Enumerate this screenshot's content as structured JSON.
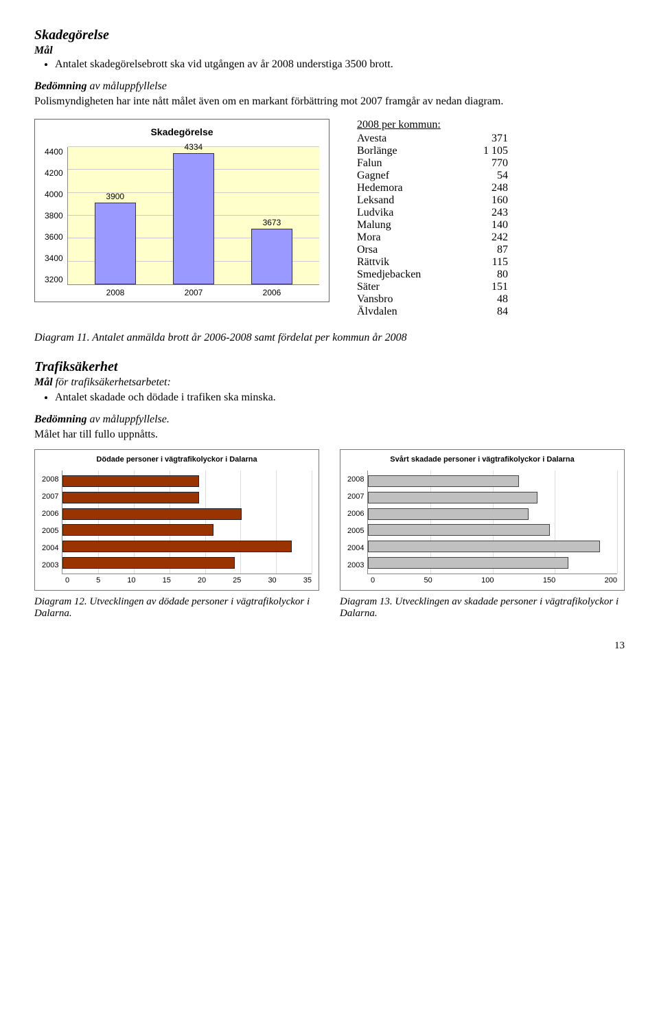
{
  "section1": {
    "title": "Skadegörelse",
    "goal_label": "Mål",
    "goal_bullet": "Antalet skadegörelsebrott ska vid utgången av år 2008 understiga 3500 brott.",
    "assessment_label": "Bedömning",
    "assessment_rest": " av måluppfyllelse",
    "assessment_text": "Polismyndigheten har inte nått målet även om en markant förbättring mot 2007 framgår av nedan diagram."
  },
  "chart1": {
    "title": "Skadegörelse",
    "type": "bar",
    "categories": [
      "2008",
      "2007",
      "2006"
    ],
    "values": [
      3900,
      4334,
      3673
    ],
    "ylim": [
      3200,
      4400
    ],
    "ytick_step": 200,
    "bar_color": "#9999ff",
    "bar_border": "#333333",
    "background_color": "#ffffcc",
    "grid_color": "#cccccc"
  },
  "kommun": {
    "header": "2008 per kommun",
    "rows": [
      {
        "name": "Avesta",
        "val": "371"
      },
      {
        "name": "Borlänge",
        "val": "1 105"
      },
      {
        "name": "Falun",
        "val": "770"
      },
      {
        "name": "Gagnef",
        "val": "54"
      },
      {
        "name": "Hedemora",
        "val": "248"
      },
      {
        "name": "Leksand",
        "val": "160"
      },
      {
        "name": "Ludvika",
        "val": "243"
      },
      {
        "name": "Malung",
        "val": "140"
      },
      {
        "name": "Mora",
        "val": "242"
      },
      {
        "name": "Orsa",
        "val": "87"
      },
      {
        "name": "Rättvik",
        "val": "115"
      },
      {
        "name": "Smedjebacken",
        "val": "80"
      },
      {
        "name": "Säter",
        "val": "151"
      },
      {
        "name": "Vansbro",
        "val": "48"
      },
      {
        "name": "Älvdalen",
        "val": "84"
      }
    ]
  },
  "caption11": "Diagram 11. Antalet anmälda brott år 2006-2008 samt fördelat per kommun år 2008",
  "section2": {
    "title": "Trafiksäkerhet",
    "goal_label": "Mål",
    "goal_rest": " för trafiksäkerhetsarbetet",
    "goal_bullet": "Antalet skadade och dödade i trafiken ska minska.",
    "assessment_label": "Bedömning",
    "assessment_rest": " av måluppfyllelse.",
    "assessment_text": "Målet har till fullo uppnåtts."
  },
  "chart2": {
    "title": "Dödade personer i vägtrafikolyckor i Dalarna",
    "type": "bar_horizontal",
    "categories": [
      "2008",
      "2007",
      "2006",
      "2005",
      "2004",
      "2003"
    ],
    "values": [
      19,
      19,
      25,
      21,
      32,
      24
    ],
    "xlim": [
      0,
      35
    ],
    "xtick_step": 5,
    "bar_color": "#993300",
    "bar_border": "#222222"
  },
  "chart3": {
    "title": "Svårt skadade personer i vägtrafikolyckor i Dalarna",
    "type": "bar_horizontal",
    "categories": [
      "2008",
      "2007",
      "2006",
      "2005",
      "2004",
      "2003"
    ],
    "values": [
      120,
      135,
      128,
      145,
      185,
      160
    ],
    "xlim": [
      0,
      200
    ],
    "xtick_step": 50,
    "bar_color": "#c0c0c0",
    "bar_border": "#444444"
  },
  "caption12": "Diagram 12. Utvecklingen av dödade personer i vägtrafikolyckor i Dalarna.",
  "caption13": "Diagram 13. Utvecklingen av skadade personer i vägtrafikolyckor i Dalarna.",
  "page_number": "13"
}
